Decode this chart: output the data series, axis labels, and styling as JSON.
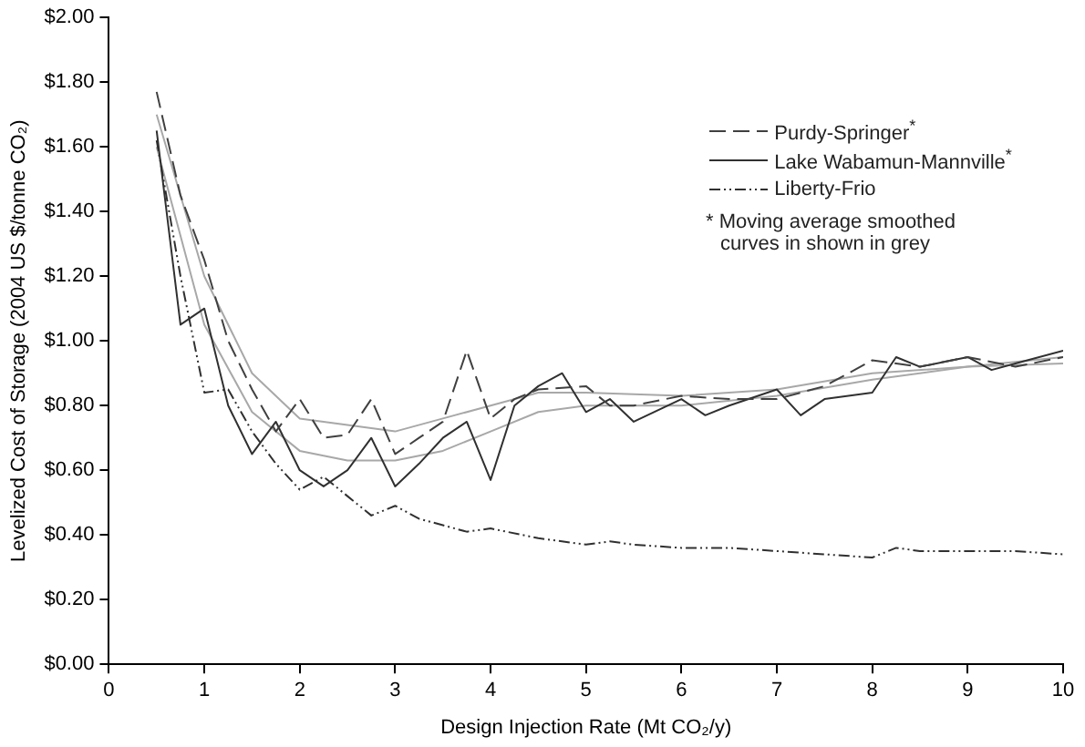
{
  "chart_data": {
    "type": "line",
    "xlabel": "Design Injection Rate (Mt CO₂/y)",
    "ylabel": "Levelized Cost of Storage (2004 US $/tonne CO₂)",
    "xlim": [
      0,
      10
    ],
    "xticks": [
      0,
      1,
      2,
      3,
      4,
      5,
      6,
      7,
      8,
      9,
      10
    ],
    "ylim": [
      0,
      2
    ],
    "yticks": [
      {
        "value": 0,
        "label": "$0.00"
      },
      {
        "value": 0.2,
        "label": "$0.20"
      },
      {
        "value": 0.4,
        "label": "$0.40"
      },
      {
        "value": 0.6,
        "label": "$0.60"
      },
      {
        "value": 0.8,
        "label": "$0.80"
      },
      {
        "value": 1,
        "label": "$1.00"
      },
      {
        "value": 1.2,
        "label": "$1.20"
      },
      {
        "value": 1.4,
        "label": "$1.40"
      },
      {
        "value": 1.6,
        "label": "$1.60"
      },
      {
        "value": 1.8,
        "label": "$1.80"
      },
      {
        "value": 2,
        "label": "$2.00"
      }
    ],
    "grid": false,
    "legend": "top right",
    "marker": "none",
    "annotations": [
      "* Moving average smoothed curves in shown in grey"
    ],
    "series": [
      {
        "name": "Purdy-Springer$^{*}$",
        "color": "#404040",
        "line_style": "dashed",
        "x": [
          0.5,
          0.75,
          1,
          1.25,
          1.5,
          1.75,
          2,
          2.25,
          2.5,
          2.75,
          3,
          3.25,
          3.5,
          3.75,
          4,
          4.25,
          4.5,
          5,
          5.25,
          5.5,
          6,
          6.5,
          7,
          7.5,
          8,
          8.5,
          9,
          9.5,
          10
        ],
        "values": [
          1.77,
          1.45,
          1.25,
          1.0,
          0.85,
          0.72,
          0.82,
          0.7,
          0.71,
          0.82,
          0.65,
          0.7,
          0.75,
          0.97,
          0.76,
          0.82,
          0.85,
          0.86,
          0.8,
          0.8,
          0.83,
          0.82,
          0.82,
          0.86,
          0.94,
          0.92,
          0.95,
          0.92,
          0.95
        ]
      },
      {
        "name": "Lake Wabamun-Mannville$^{*}$",
        "color": "#303030",
        "line_style": "solid",
        "x": [
          0.5,
          0.75,
          1,
          1.25,
          1.5,
          1.75,
          2,
          2.25,
          2.5,
          2.75,
          3,
          3.25,
          3.5,
          3.75,
          4,
          4.25,
          4.5,
          4.75,
          5,
          5.25,
          5.5,
          6,
          6.25,
          6.5,
          7,
          7.25,
          7.5,
          8,
          8.25,
          8.5,
          9,
          9.25,
          9.5,
          10
        ],
        "values": [
          1.65,
          1.05,
          1.1,
          0.8,
          0.65,
          0.75,
          0.6,
          0.55,
          0.6,
          0.7,
          0.55,
          0.62,
          0.7,
          0.75,
          0.57,
          0.8,
          0.86,
          0.9,
          0.78,
          0.82,
          0.75,
          0.82,
          0.77,
          0.8,
          0.85,
          0.77,
          0.82,
          0.84,
          0.95,
          0.92,
          0.95,
          0.91,
          0.93,
          0.97
        ]
      },
      {
        "name": "Liberty-Frio",
        "color": "#303030",
        "line_style": "dotted",
        "x": [
          0.5,
          0.75,
          1,
          1.25,
          1.5,
          1.75,
          2,
          2.25,
          2.5,
          2.75,
          3,
          3.25,
          3.5,
          3.75,
          4,
          4.5,
          5,
          5.25,
          5.5,
          6,
          6.5,
          7,
          7.5,
          8,
          8.25,
          8.5,
          9,
          9.5,
          10
        ],
        "values": [
          1.62,
          1.2,
          0.84,
          0.85,
          0.72,
          0.62,
          0.54,
          0.58,
          0.52,
          0.46,
          0.49,
          0.45,
          0.43,
          0.41,
          0.42,
          0.39,
          0.37,
          0.38,
          0.37,
          0.36,
          0.36,
          0.35,
          0.34,
          0.33,
          0.36,
          0.35,
          0.35,
          0.35,
          0.34
        ]
      },
      {
        "color": "#a8a8a8",
        "line_style": "solid",
        "x": [
          0.5,
          1,
          1.5,
          2,
          2.5,
          3,
          3.5,
          4,
          4.5,
          5,
          6,
          7,
          8,
          9,
          10
        ],
        "values": [
          1.7,
          1.2,
          0.9,
          0.76,
          0.74,
          0.72,
          0.76,
          0.8,
          0.84,
          0.84,
          0.83,
          0.85,
          0.9,
          0.92,
          0.93
        ]
      },
      {
        "color": "#a8a8a8",
        "line_style": "solid",
        "x": [
          0.5,
          1,
          1.5,
          2,
          2.5,
          3,
          3.5,
          4,
          4.5,
          5,
          6,
          7,
          8,
          9,
          10
        ],
        "values": [
          1.6,
          1.05,
          0.78,
          0.66,
          0.63,
          0.63,
          0.66,
          0.72,
          0.78,
          0.8,
          0.8,
          0.83,
          0.88,
          0.92,
          0.95
        ]
      }
    ]
  }
}
